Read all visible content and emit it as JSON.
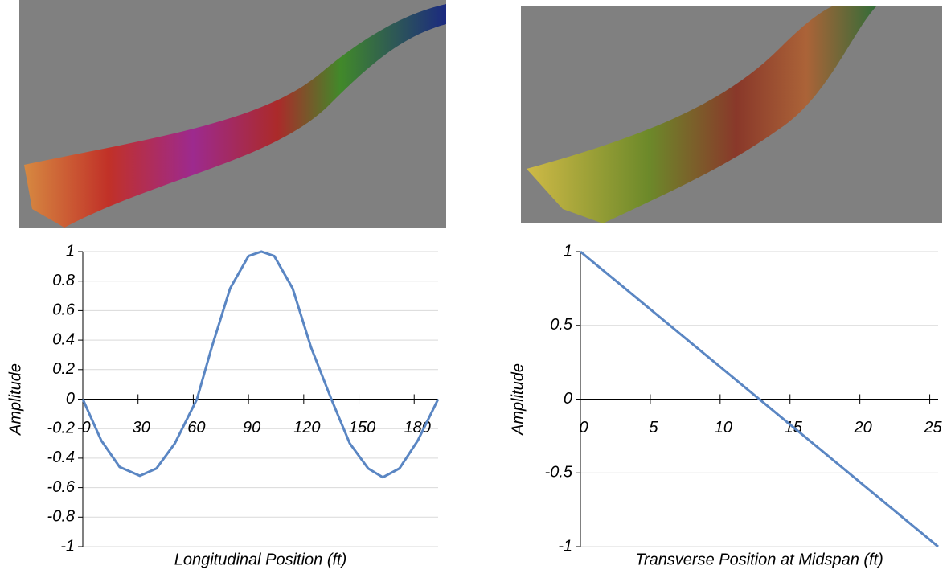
{
  "chart_data": [
    {
      "type": "line",
      "x_label": "Longitudinal Position (ft)",
      "y_label": "Amplitude",
      "x": [
        0,
        10,
        20,
        31,
        40,
        50,
        62,
        70,
        80,
        90,
        97,
        104,
        114,
        124,
        135,
        145,
        155,
        163,
        172,
        182,
        193
      ],
      "values": [
        0,
        -0.28,
        -0.46,
        -0.52,
        -0.47,
        -0.3,
        0,
        0.35,
        0.75,
        0.97,
        1,
        0.97,
        0.75,
        0.35,
        0,
        -0.3,
        -0.47,
        -0.53,
        -0.47,
        -0.28,
        0
      ],
      "color": "#5a86c3",
      "xlim": [
        0,
        193
      ],
      "xticks": [
        0,
        30,
        60,
        90,
        120,
        150,
        180
      ],
      "ylim": [
        -1,
        1
      ],
      "yticks": [
        -1,
        -0.8,
        -0.6,
        -0.4,
        -0.2,
        0,
        0.2,
        0.4,
        0.6,
        0.8,
        1
      ],
      "grid": true
    },
    {
      "type": "line",
      "x_label": "Transverse Position at Midspan (ft)",
      "y_label": "Amplitude",
      "x": [
        0,
        25.6
      ],
      "values": [
        1,
        -1
      ],
      "color": "#5a86c3",
      "xlim": [
        0,
        25.6
      ],
      "xticks": [
        0,
        5,
        10,
        15,
        20,
        25
      ],
      "ylim": [
        -1,
        1
      ],
      "yticks": [
        -1,
        -0.5,
        0,
        0.5,
        1
      ],
      "grid": true
    }
  ]
}
